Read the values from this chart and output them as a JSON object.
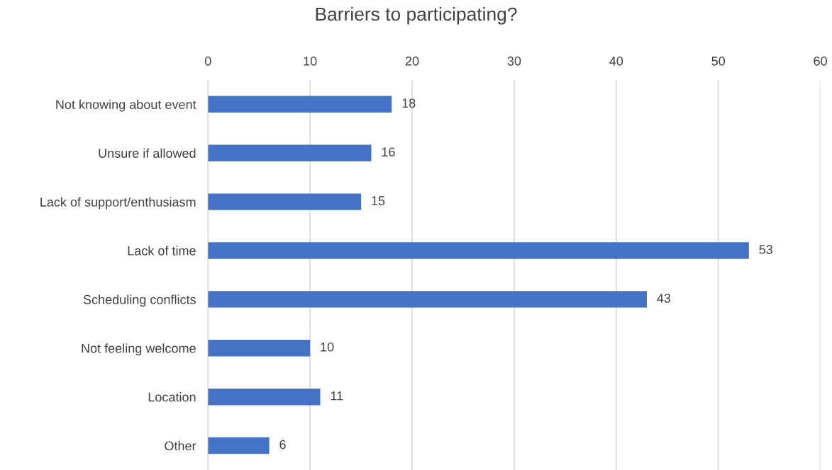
{
  "chart_data": {
    "type": "bar",
    "orientation": "horizontal",
    "title": "Barriers to participating?",
    "categories": [
      "Not knowing about event",
      "Unsure if allowed",
      "Lack of support/enthusiasm",
      "Lack of time",
      "Scheduling conflicts",
      "Not feeling welcome",
      "Location",
      "Other"
    ],
    "values": [
      18,
      16,
      15,
      53,
      43,
      10,
      11,
      6
    ],
    "color": "#4472c4",
    "xlim": [
      0,
      60
    ],
    "xticks": [
      0,
      10,
      20,
      30,
      40,
      50,
      60
    ],
    "grid": "x",
    "data_labels": true,
    "legend": false
  }
}
